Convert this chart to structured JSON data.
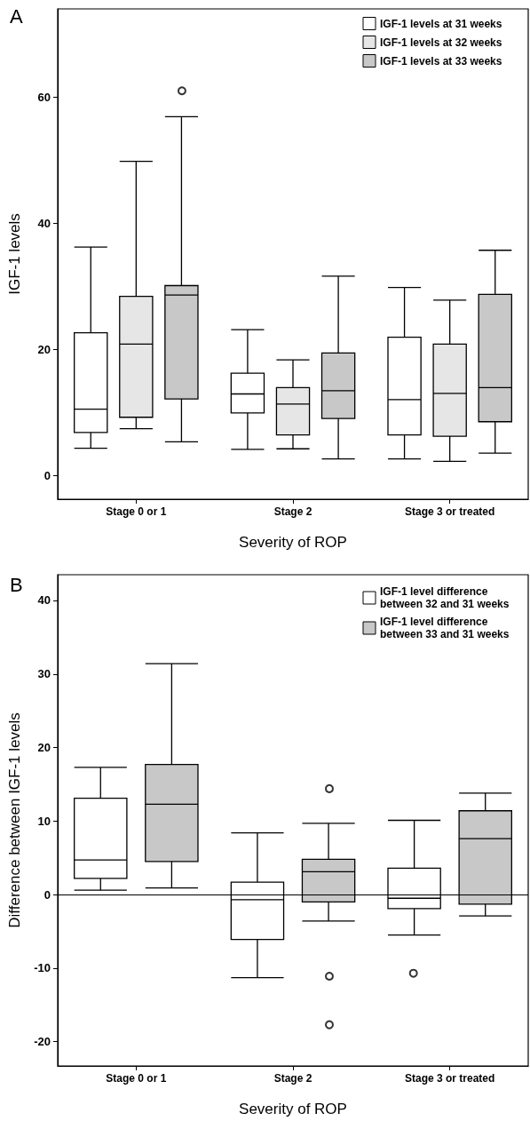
{
  "chart_data": [
    {
      "type": "box",
      "title": "A",
      "xlabel": "Severity of ROP",
      "ylabel": "IGF-1 levels",
      "categories": [
        "Stage 0 or 1",
        "Stage 2",
        "Stage 3 or treated"
      ],
      "ylim": [
        -3.8,
        74
      ],
      "yticks": [
        0,
        20,
        40,
        60
      ],
      "legend": "top right",
      "series": [
        {
          "name": "IGF-1 levels at 31 weeks",
          "color": "#ffffff",
          "boxes": [
            {
              "low": 4.3,
              "q1": 6.8,
              "median": 10.5,
              "q3": 22.6,
              "high": 36.2
            },
            {
              "low": 4.1,
              "q1": 9.9,
              "median": 12.9,
              "q3": 16.2,
              "high": 23.1
            },
            {
              "low": 2.6,
              "q1": 6.4,
              "median": 12.0,
              "q3": 21.9,
              "high": 29.8
            }
          ]
        },
        {
          "name": "IGF-1 levels at 32 weeks",
          "color": "#e6e6e6",
          "boxes": [
            {
              "low": 7.4,
              "q1": 9.2,
              "median": 20.8,
              "q3": 28.4,
              "high": 49.8
            },
            {
              "low": 4.2,
              "q1": 6.4,
              "median": 11.3,
              "q3": 13.9,
              "high": 18.3
            },
            {
              "low": 2.2,
              "q1": 6.2,
              "median": 13.0,
              "q3": 20.8,
              "high": 27.8
            }
          ]
        },
        {
          "name": "IGF-1 levels at 33 weeks",
          "color": "#c8c8c8",
          "boxes": [
            {
              "low": 5.3,
              "q1": 12.1,
              "median": 28.6,
              "q3": 30.1,
              "high": 56.9,
              "outliers": [
                61.0
              ]
            },
            {
              "low": 2.6,
              "q1": 9.0,
              "median": 13.4,
              "q3": 19.4,
              "high": 31.6
            },
            {
              "low": 3.5,
              "q1": 8.5,
              "median": 13.9,
              "q3": 28.7,
              "high": 35.7
            }
          ]
        }
      ]
    },
    {
      "type": "box",
      "title": "B",
      "xlabel": "Severity of ROP",
      "ylabel": "Difference between IGF-1 levels",
      "categories": [
        "Stage 0 or 1",
        "Stage 2",
        "Stage 3 or treated"
      ],
      "ylim": [
        -23.3,
        43.5
      ],
      "yticks": [
        -20,
        -10,
        0,
        10,
        20,
        30,
        40
      ],
      "legend": "top right",
      "ref_lines": [
        {
          "axis": "y",
          "value": 0,
          "color": "#000000"
        }
      ],
      "series": [
        {
          "name": "IGF-1 level difference between 32 and 31 weeks",
          "color": "#ffffff",
          "boxes": [
            {
              "low": 0.6,
              "q1": 2.2,
              "median": 4.7,
              "q3": 13.1,
              "high": 17.3
            },
            {
              "low": -11.3,
              "q1": -6.1,
              "median": -0.7,
              "q3": 1.7,
              "high": 8.4
            },
            {
              "low": -5.5,
              "q1": -1.9,
              "median": -0.5,
              "q3": 3.6,
              "high": 10.1,
              "outliers": [
                -10.7
              ]
            }
          ]
        },
        {
          "name": "IGF-1 level difference between 33 and 31 weeks",
          "color": "#c8c8c8",
          "boxes": [
            {
              "low": 0.9,
              "q1": 4.5,
              "median": 12.3,
              "q3": 17.7,
              "high": 31.4
            },
            {
              "low": -3.6,
              "q1": -1.0,
              "median": 3.1,
              "q3": 4.8,
              "high": 9.7,
              "outliers": [
                14.4,
                -11.1,
                -17.7
              ]
            },
            {
              "low": -2.9,
              "q1": -1.3,
              "median": 7.6,
              "q3": 11.4,
              "high": 13.8
            }
          ]
        }
      ]
    }
  ]
}
